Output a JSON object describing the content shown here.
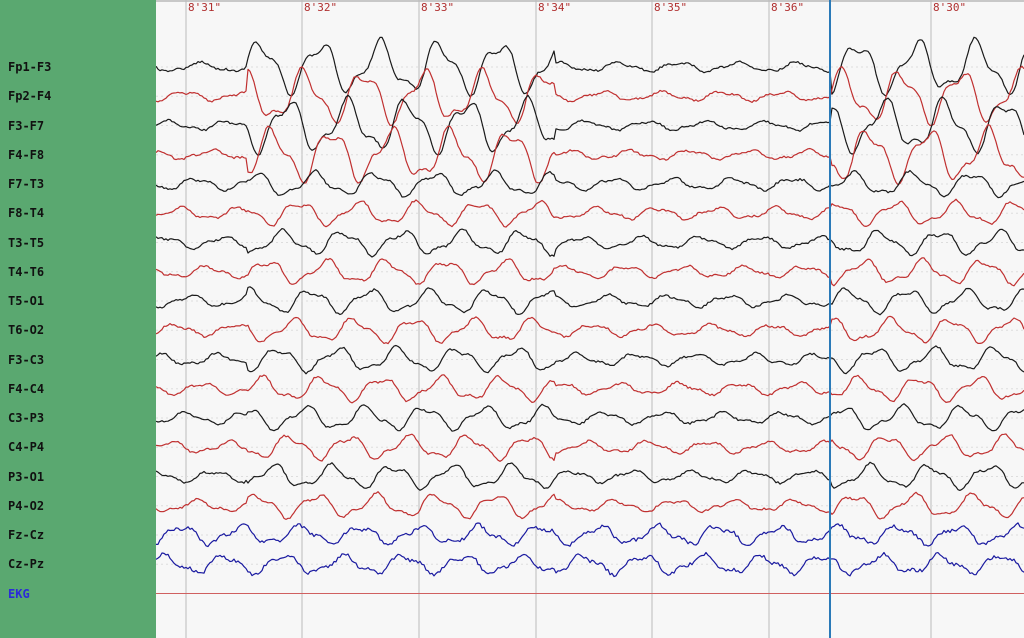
{
  "channels": [
    {
      "label": "Fp1-F3",
      "color": "black"
    },
    {
      "label": "Fp2-F4",
      "color": "red"
    },
    {
      "label": "F3-F7",
      "color": "black"
    },
    {
      "label": "F4-F8",
      "color": "red"
    },
    {
      "label": "F7-T3",
      "color": "black"
    },
    {
      "label": "F8-T4",
      "color": "red"
    },
    {
      "label": "T3-T5",
      "color": "black"
    },
    {
      "label": "T4-T6",
      "color": "red"
    },
    {
      "label": "T5-O1",
      "color": "black"
    },
    {
      "label": "T6-O2",
      "color": "red"
    },
    {
      "label": "F3-C3",
      "color": "black"
    },
    {
      "label": "F4-C4",
      "color": "red"
    },
    {
      "label": "C3-P3",
      "color": "black"
    },
    {
      "label": "C4-P4",
      "color": "red"
    },
    {
      "label": "P3-O1",
      "color": "black"
    },
    {
      "label": "P4-O2",
      "color": "red"
    },
    {
      "label": "Fz-Cz",
      "color": "blue"
    },
    {
      "label": "Cz-Pz",
      "color": "blue"
    },
    {
      "label": "EKG",
      "color": "ekg"
    }
  ],
  "time_markers": [
    "8'31\"",
    "8'32\"",
    "8'33\"",
    "8'34\"",
    "8'35\"",
    "8'36\"",
    "8'30\""
  ],
  "colors": {
    "sidebar": "#5aa870",
    "background": "#f7f7f7",
    "trace_black": "#1a1a1a",
    "trace_red": "#c03030",
    "trace_blue": "#1a1aa0",
    "ekg_line": "#d06060",
    "cursor": "#2a7ab8",
    "gridline": "#bbbbbb",
    "time_label": "#b03030",
    "ekg_label": "#2b2bd8"
  }
}
